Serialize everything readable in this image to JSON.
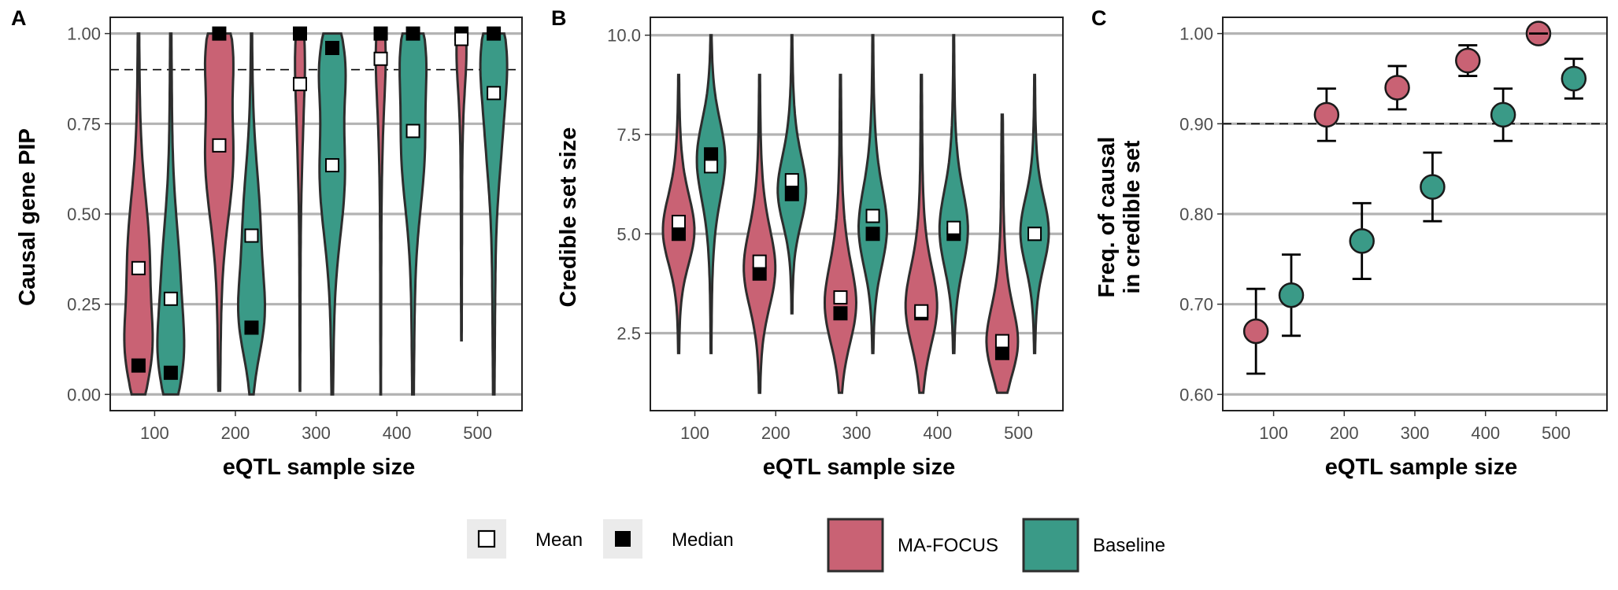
{
  "colors": {
    "ma_focus": "#c96274",
    "baseline": "#3a9a87",
    "gridline": "#b3b3b3",
    "outline": "#2d2d2d",
    "legend_key_bg": "#ebebeb"
  },
  "legend": {
    "mean_label": "Mean",
    "median_label": "Median",
    "ma_focus_label": "MA-FOCUS",
    "baseline_label": "Baseline"
  },
  "chart_data": [
    {
      "panel": "A",
      "type": "violin",
      "xlabel": "eQTL sample size",
      "ylabel": "Causal gene PIP",
      "x_ticks": [
        "100",
        "200",
        "300",
        "400",
        "500"
      ],
      "y_ticks": [
        "0.00",
        "0.25",
        "0.50",
        "0.75",
        "1.00"
      ],
      "ylim": [
        -0.045,
        1.045
      ],
      "reference_line": 0.9,
      "series": [
        {
          "name": "MA-FOCUS",
          "x": [
            100,
            200,
            300,
            400,
            500
          ],
          "mean": [
            0.35,
            0.69,
            0.86,
            0.93,
            0.985
          ],
          "median": [
            0.08,
            1.0,
            1.0,
            1.0,
            1.0
          ],
          "range": [
            [
              0.0,
              1.0
            ],
            [
              0.01,
              1.0
            ],
            [
              0.01,
              1.0
            ],
            [
              0.0,
              1.0
            ],
            [
              0.15,
              1.0
            ]
          ]
        },
        {
          "name": "Baseline",
          "x": [
            100,
            200,
            300,
            400,
            500
          ],
          "mean": [
            0.265,
            0.44,
            0.635,
            0.73,
            0.835
          ],
          "median": [
            0.06,
            0.185,
            0.96,
            1.0,
            1.0
          ],
          "range": [
            [
              0.0,
              1.0
            ],
            [
              0.0,
              1.0
            ],
            [
              0.0,
              1.0
            ],
            [
              0.0,
              1.0
            ],
            [
              0.0,
              1.0
            ]
          ]
        }
      ]
    },
    {
      "panel": "B",
      "type": "violin",
      "xlabel": "eQTL sample size",
      "ylabel": "Credible set size",
      "x_ticks": [
        "100",
        "200",
        "300",
        "400",
        "500"
      ],
      "y_ticks": [
        "2.5",
        "5.0",
        "7.5",
        "10.0"
      ],
      "ylim": [
        0.55,
        10.45
      ],
      "series": [
        {
          "name": "MA-FOCUS",
          "x": [
            100,
            200,
            300,
            400,
            500
          ],
          "mean": [
            5.3,
            4.3,
            3.4,
            3.05,
            2.3
          ],
          "median": [
            5.0,
            4.0,
            3.0,
            3.0,
            2.0
          ],
          "range": [
            [
              2,
              9
            ],
            [
              1,
              9
            ],
            [
              1,
              9
            ],
            [
              1,
              9
            ],
            [
              1,
              8
            ]
          ]
        },
        {
          "name": "Baseline",
          "x": [
            100,
            200,
            300,
            400,
            500
          ],
          "mean": [
            6.7,
            6.35,
            5.45,
            5.15,
            5.0
          ],
          "median": [
            7.0,
            6.0,
            5.0,
            5.0,
            5.0
          ],
          "range": [
            [
              2,
              10
            ],
            [
              3,
              10
            ],
            [
              2,
              10
            ],
            [
              2,
              10
            ],
            [
              2,
              9
            ]
          ]
        }
      ]
    },
    {
      "panel": "C",
      "type": "scatter",
      "xlabel": "eQTL sample size",
      "ylabel": "Freq. of causal\nin credible set",
      "x_ticks": [
        "100",
        "200",
        "300",
        "400",
        "500"
      ],
      "y_ticks": [
        "0.60",
        "0.70",
        "0.80",
        "0.90",
        "1.00"
      ],
      "ylim": [
        0.582,
        1.018
      ],
      "reference_line": 0.9,
      "series": [
        {
          "name": "MA-FOCUS",
          "x": [
            75,
            175,
            275,
            375,
            475
          ],
          "y": [
            0.67,
            0.91,
            0.94,
            0.97,
            1.0
          ],
          "lower": [
            0.623,
            0.881,
            0.916,
            0.953,
            1.0
          ],
          "upper": [
            0.717,
            0.939,
            0.964,
            0.987,
            1.0
          ]
        },
        {
          "name": "Baseline",
          "x": [
            125,
            225,
            325,
            425,
            525
          ],
          "y": [
            0.71,
            0.77,
            0.83,
            0.91,
            0.95
          ],
          "lower": [
            0.665,
            0.728,
            0.792,
            0.881,
            0.928
          ],
          "upper": [
            0.755,
            0.812,
            0.868,
            0.939,
            0.972
          ]
        }
      ]
    }
  ]
}
